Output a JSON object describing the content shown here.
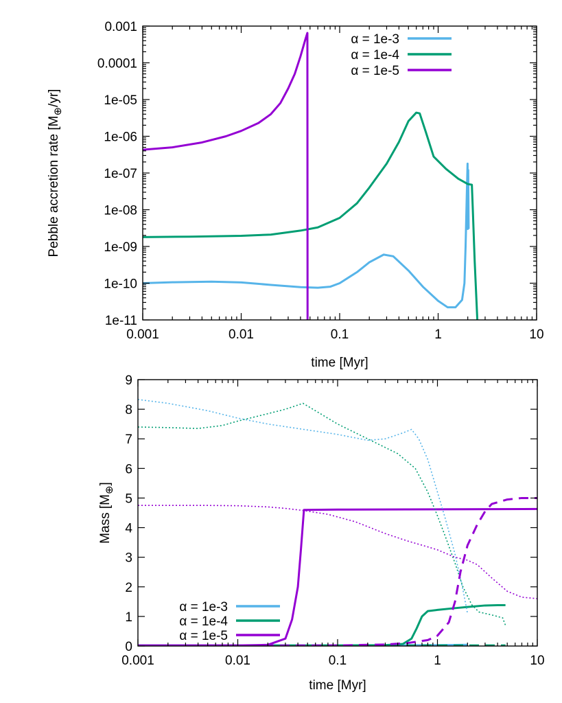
{
  "chart_data": [
    {
      "type": "line",
      "title": "",
      "xlabel": "time [Myr]",
      "ylabel_main": "Pebble accretion rate [M",
      "ylabel_sub": "⊕",
      "ylabel_end": "/yr]",
      "x_scale": "log",
      "y_scale": "log",
      "xlim": [
        0.001,
        10
      ],
      "ylim": [
        1e-11,
        0.001
      ],
      "x_ticks": [
        {
          "value": 0.001,
          "label": "0.001"
        },
        {
          "value": 0.01,
          "label": "0.01"
        },
        {
          "value": 0.1,
          "label": "0.1"
        },
        {
          "value": 1,
          "label": "1"
        },
        {
          "value": 10,
          "label": "10"
        }
      ],
      "y_ticks": [
        {
          "value": 1e-11,
          "label": "1e-11"
        },
        {
          "value": 1e-10,
          "label": "1e-10"
        },
        {
          "value": 1e-09,
          "label": "1e-09"
        },
        {
          "value": 1e-08,
          "label": "1e-08"
        },
        {
          "value": 1e-07,
          "label": "1e-07"
        },
        {
          "value": 1e-06,
          "label": "1e-06"
        },
        {
          "value": 1e-05,
          "label": "1e-05"
        },
        {
          "value": 0.0001,
          "label": "0.0001"
        },
        {
          "value": 0.001,
          "label": "0.001"
        }
      ],
      "legend_position": "top-right",
      "grid": false,
      "series": [
        {
          "name": "α = 1e-3",
          "color": "#56b4e9",
          "style": "solid",
          "points": [
            [
              0.001,
              1e-10
            ],
            [
              0.002,
              1.06e-10
            ],
            [
              0.005,
              1.1e-10
            ],
            [
              0.01,
              1.05e-10
            ],
            [
              0.02,
              9e-11
            ],
            [
              0.04,
              7.8e-11
            ],
            [
              0.06,
              7.5e-11
            ],
            [
              0.08,
              8e-11
            ],
            [
              0.1,
              1e-10
            ],
            [
              0.15,
              2e-10
            ],
            [
              0.2,
              3.7e-10
            ],
            [
              0.28,
              6e-10
            ],
            [
              0.35,
              5.4e-10
            ],
            [
              0.5,
              2.2e-10
            ],
            [
              0.7,
              8e-11
            ],
            [
              1.0,
              3.3e-11
            ],
            [
              1.25,
              2.2e-11
            ],
            [
              1.5,
              2.2e-11
            ],
            [
              1.75,
              3.5e-11
            ],
            [
              1.85,
              1e-10
            ],
            [
              1.9,
              1e-09
            ],
            [
              1.95,
              2e-08
            ],
            [
              1.99,
              1.8e-07
            ],
            [
              2.0,
              3e-09
            ],
            [
              2.02,
              1.2e-07
            ],
            [
              2.04,
              3e-09
            ]
          ]
        },
        {
          "name": "α = 1e-4",
          "color": "#009e73",
          "style": "solid",
          "points": [
            [
              0.001,
              1.8e-09
            ],
            [
              0.003,
              1.85e-09
            ],
            [
              0.01,
              1.95e-09
            ],
            [
              0.02,
              2.1e-09
            ],
            [
              0.04,
              2.7e-09
            ],
            [
              0.06,
              3.3e-09
            ],
            [
              0.1,
              6e-09
            ],
            [
              0.15,
              1.5e-08
            ],
            [
              0.2,
              4e-08
            ],
            [
              0.3,
              1.8e-07
            ],
            [
              0.4,
              7e-07
            ],
            [
              0.5,
              2.6e-06
            ],
            [
              0.6,
              4.4e-06
            ],
            [
              0.65,
              4.2e-06
            ],
            [
              0.75,
              1.3e-06
            ],
            [
              0.9,
              2.8e-07
            ],
            [
              1.2,
              1.3e-07
            ],
            [
              1.6,
              7e-08
            ],
            [
              2.0,
              5e-08
            ],
            [
              2.2,
              4.8e-08
            ],
            [
              2.25,
              1e-08
            ],
            [
              2.35,
              4e-10
            ],
            [
              2.5,
              1e-11
            ]
          ]
        },
        {
          "name": "α = 1e-5",
          "color": "#9400d3",
          "style": "solid",
          "points": [
            [
              0.001,
              4.3e-07
            ],
            [
              0.002,
              5e-07
            ],
            [
              0.004,
              6.8e-07
            ],
            [
              0.007,
              1e-06
            ],
            [
              0.01,
              1.4e-06
            ],
            [
              0.015,
              2.3e-06
            ],
            [
              0.02,
              4e-06
            ],
            [
              0.025,
              8e-06
            ],
            [
              0.03,
              2e-05
            ],
            [
              0.035,
              5e-05
            ],
            [
              0.04,
              0.00015
            ],
            [
              0.045,
              0.00045
            ],
            [
              0.047,
              0.00065
            ],
            [
              0.0472,
              1e-11
            ]
          ]
        }
      ]
    },
    {
      "type": "line",
      "title": "",
      "xlabel": "time [Myr]",
      "ylabel_main": "Mass [M",
      "ylabel_sub": "⊕",
      "ylabel_end": "]",
      "x_scale": "log",
      "y_scale": "linear",
      "xlim": [
        0.001,
        10
      ],
      "ylim": [
        0,
        9
      ],
      "x_ticks": [
        {
          "value": 0.001,
          "label": "0.001"
        },
        {
          "value": 0.01,
          "label": "0.01"
        },
        {
          "value": 0.1,
          "label": "0.1"
        },
        {
          "value": 1,
          "label": "1"
        },
        {
          "value": 10,
          "label": "10"
        }
      ],
      "y_ticks": [
        {
          "value": 0,
          "label": "0"
        },
        {
          "value": 1,
          "label": "1"
        },
        {
          "value": 2,
          "label": "2"
        },
        {
          "value": 3,
          "label": "3"
        },
        {
          "value": 4,
          "label": "4"
        },
        {
          "value": 5,
          "label": "5"
        },
        {
          "value": 6,
          "label": "6"
        },
        {
          "value": 7,
          "label": "7"
        },
        {
          "value": 8,
          "label": "8"
        },
        {
          "value": 9,
          "label": "9"
        }
      ],
      "legend_position": "bottom-left",
      "grid": false,
      "series": [
        {
          "name": "α = 1e-3",
          "color": "#56b4e9",
          "style": "solid",
          "points": [
            [
              0.001,
              0.02
            ],
            [
              0.1,
              0.02
            ],
            [
              1.0,
              0.03
            ],
            [
              2.0,
              0.04
            ]
          ]
        },
        {
          "name": "α = 1e-4",
          "color": "#009e73",
          "style": "solid",
          "points": [
            [
              0.001,
              0.02
            ],
            [
              0.1,
              0.02
            ],
            [
              0.3,
              0.03
            ],
            [
              0.45,
              0.07
            ],
            [
              0.55,
              0.25
            ],
            [
              0.62,
              0.6
            ],
            [
              0.7,
              1.0
            ],
            [
              0.8,
              1.18
            ],
            [
              1.0,
              1.22
            ],
            [
              1.5,
              1.28
            ],
            [
              2.0,
              1.32
            ],
            [
              3.0,
              1.37
            ],
            [
              4.0,
              1.38
            ],
            [
              4.8,
              1.38
            ]
          ]
        },
        {
          "name": "α = 1e-5",
          "color": "#9400d3",
          "style": "solid",
          "points": [
            [
              0.001,
              0.02
            ],
            [
              0.01,
              0.02
            ],
            [
              0.02,
              0.04
            ],
            [
              0.03,
              0.25
            ],
            [
              0.035,
              0.9
            ],
            [
              0.04,
              2.0
            ],
            [
              0.043,
              3.3
            ],
            [
              0.046,
              4.6
            ],
            [
              0.1,
              4.61
            ],
            [
              1.0,
              4.62
            ],
            [
              10,
              4.63
            ]
          ]
        },
        {
          "color": "#56b4e9",
          "style": "dotted",
          "points": [
            [
              0.001,
              8.33
            ],
            [
              0.002,
              8.2
            ],
            [
              0.005,
              7.95
            ],
            [
              0.01,
              7.7
            ],
            [
              0.02,
              7.5
            ],
            [
              0.05,
              7.3
            ],
            [
              0.1,
              7.15
            ],
            [
              0.2,
              6.95
            ],
            [
              0.3,
              7.0
            ],
            [
              0.45,
              7.2
            ],
            [
              0.55,
              7.32
            ],
            [
              0.65,
              7.0
            ],
            [
              0.8,
              6.3
            ],
            [
              1.0,
              5.2
            ],
            [
              1.2,
              4.3
            ],
            [
              1.5,
              3.1
            ],
            [
              1.8,
              1.9
            ],
            [
              2.0,
              1.1
            ]
          ]
        },
        {
          "color": "#009e73",
          "style": "dotted",
          "points": [
            [
              0.001,
              7.4
            ],
            [
              0.002,
              7.38
            ],
            [
              0.004,
              7.35
            ],
            [
              0.007,
              7.45
            ],
            [
              0.01,
              7.6
            ],
            [
              0.02,
              7.85
            ],
            [
              0.03,
              8.0
            ],
            [
              0.045,
              8.2
            ],
            [
              0.06,
              7.95
            ],
            [
              0.1,
              7.5
            ],
            [
              0.2,
              7.0
            ],
            [
              0.4,
              6.5
            ],
            [
              0.6,
              6.0
            ],
            [
              0.8,
              5.2
            ],
            [
              1.0,
              4.4
            ],
            [
              1.2,
              3.7
            ],
            [
              1.5,
              2.8
            ],
            [
              1.8,
              2.0
            ],
            [
              2.2,
              1.4
            ],
            [
              2.6,
              1.15
            ],
            [
              3.5,
              1.05
            ],
            [
              4.5,
              0.95
            ],
            [
              4.8,
              0.7
            ]
          ]
        },
        {
          "color": "#9400d3",
          "style": "dotted",
          "points": [
            [
              0.001,
              4.75
            ],
            [
              0.005,
              4.75
            ],
            [
              0.01,
              4.74
            ],
            [
              0.02,
              4.7
            ],
            [
              0.03,
              4.65
            ],
            [
              0.045,
              4.58
            ],
            [
              0.08,
              4.45
            ],
            [
              0.15,
              4.2
            ],
            [
              0.3,
              3.8
            ],
            [
              0.5,
              3.55
            ],
            [
              0.8,
              3.35
            ],
            [
              1.0,
              3.25
            ],
            [
              1.5,
              3.0
            ],
            [
              2.0,
              2.9
            ],
            [
              2.5,
              2.75
            ],
            [
              3.5,
              2.3
            ],
            [
              5.0,
              1.85
            ],
            [
              7.0,
              1.65
            ],
            [
              10,
              1.6
            ]
          ]
        },
        {
          "color": "#009e73",
          "style": "dashed",
          "points": [
            [
              0.001,
              0.01
            ],
            [
              2.0,
              0.02
            ],
            [
              4.8,
              0.02
            ]
          ]
        },
        {
          "color": "#9400d3",
          "style": "dashed",
          "points": [
            [
              0.001,
              0.01
            ],
            [
              0.1,
              0.02
            ],
            [
              0.3,
              0.05
            ],
            [
              0.5,
              0.1
            ],
            [
              0.8,
              0.2
            ],
            [
              1.0,
              0.35
            ],
            [
              1.3,
              0.8
            ],
            [
              1.5,
              1.5
            ],
            [
              1.7,
              2.5
            ],
            [
              2.0,
              3.4
            ],
            [
              2.5,
              4.1
            ],
            [
              3.0,
              4.55
            ],
            [
              3.5,
              4.8
            ],
            [
              5.0,
              4.95
            ],
            [
              7.0,
              5.0
            ],
            [
              10,
              5.0
            ]
          ]
        }
      ]
    }
  ]
}
